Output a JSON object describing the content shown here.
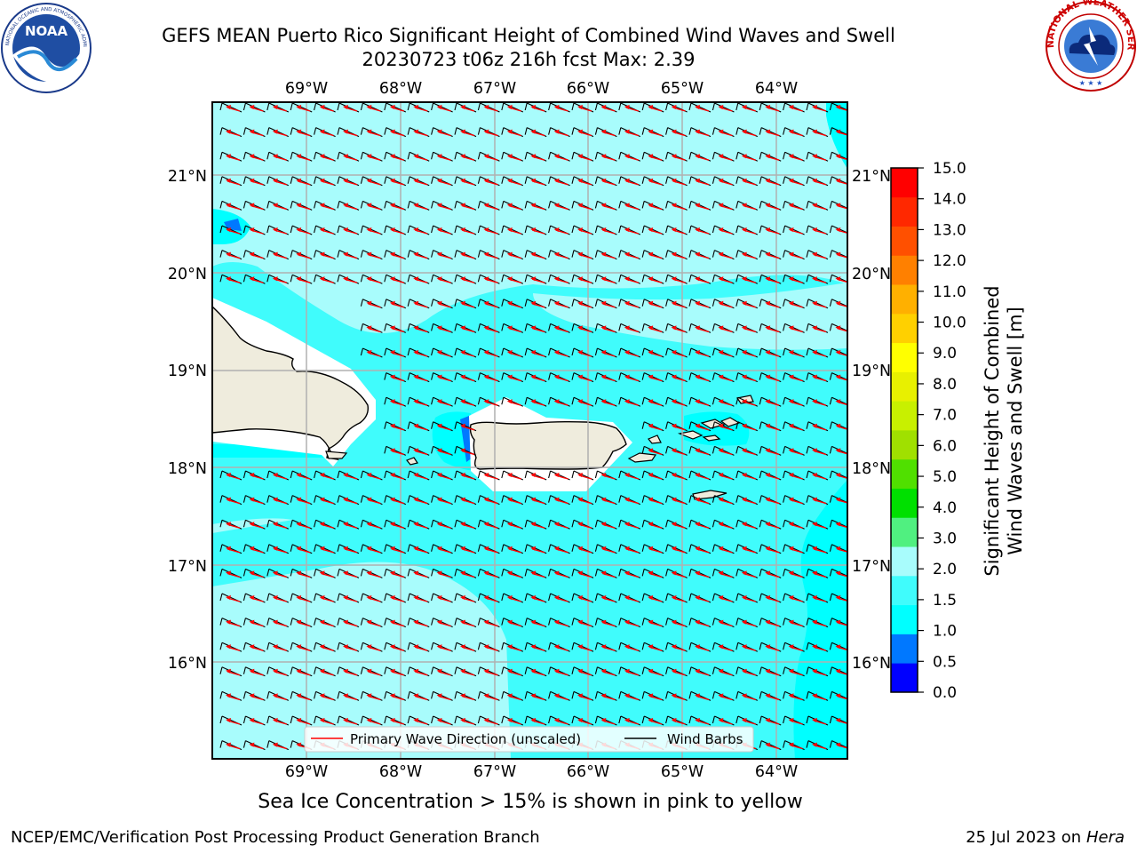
{
  "header": {
    "title_line1": "GEFS MEAN Puerto Rico Significant Height of Combined Wind Waves and Swell",
    "title_line2": "20230723 t06z 216h fcst   Max: 2.39"
  },
  "logos": {
    "left": {
      "icon": "noaa-logo-icon",
      "text": "NOAA",
      "ring_text": "NATIONAL OCEANIC AND ATMOSPHERIC ADMINISTRATION · U.S. DEPARTMENT OF COMMERCE"
    },
    "right": {
      "icon": "nws-logo-icon",
      "ring_text": "NATIONAL WEATHER SERVICE"
    }
  },
  "map": {
    "lon_labels": [
      "69°W",
      "68°W",
      "67°W",
      "66°W",
      "65°W",
      "64°W"
    ],
    "lat_labels": [
      "21°N",
      "20°N",
      "19°N",
      "18°N",
      "17°N",
      "16°N"
    ],
    "land_color": "#efecdd",
    "arrow_color": "#ff0000",
    "legend": {
      "wave_label": "Primary Wave Direction (unscaled)",
      "barb_label": "Wind Barbs"
    }
  },
  "colorbar": {
    "label_line1": "Significant Height of Combined",
    "label_line2": "Wind Waves and Swell [m]",
    "ticks": [
      "15.0",
      "14.0",
      "13.0",
      "12.0",
      "11.0",
      "10.0",
      "9.0",
      "8.0",
      "7.0",
      "6.0",
      "5.0",
      "4.0",
      "3.0",
      "2.0",
      "1.5",
      "1.0",
      "0.5",
      "0.0"
    ],
    "colors": [
      "#0000ff",
      "#0078ff",
      "#00ffff",
      "#40fcfc",
      "#a8fcfc",
      "#50f080",
      "#00e000",
      "#50e000",
      "#a0e000",
      "#c8f000",
      "#e8f000",
      "#ffff00",
      "#ffd000",
      "#ffb000",
      "#ff8000",
      "#ff5000",
      "#ff2800",
      "#ff0000"
    ]
  },
  "subtitle": "Sea Ice Concentration > 15% is shown in pink to yellow",
  "footer": {
    "left": "NCEP/EMC/Verification Post Processing Product Generation Branch",
    "right_prefix": "25 Jul 2023 on ",
    "right_host": "Hera"
  }
}
